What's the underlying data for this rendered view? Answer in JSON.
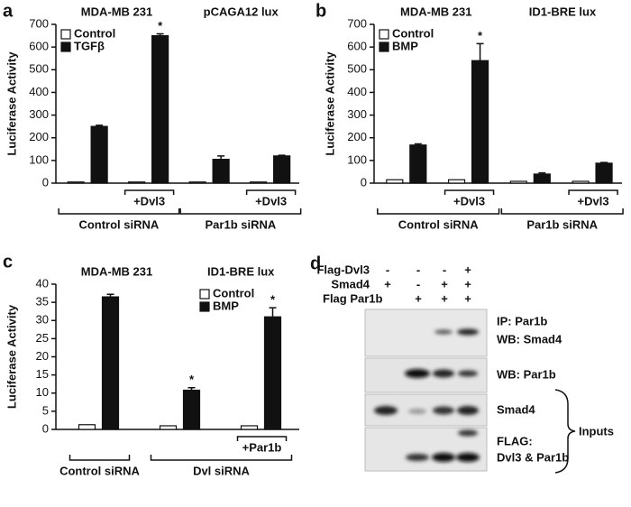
{
  "chart_data": [
    {
      "type": "bar",
      "panel": "a",
      "titles": [
        "MDA-MB 231",
        "pCAGA12 lux"
      ],
      "y_label": "Luciferase Activity",
      "categories": [
        null,
        null,
        null,
        null
      ],
      "series": [
        {
          "name": "Control",
          "color": "#ffffff",
          "values": [
            5,
            5,
            5,
            5
          ]
        },
        {
          "name": "TGFβ",
          "color": "#111111",
          "values": [
            250,
            650,
            105,
            120
          ],
          "errors": [
            5,
            8,
            15,
            3
          ]
        }
      ],
      "markers": [
        null,
        "*",
        null,
        null
      ],
      "sublabels": [
        "+Dvl3",
        "+Dvl3"
      ],
      "group_labels": [
        "Control siRNA",
        "Par1b siRNA"
      ],
      "ylim": [
        0,
        700
      ],
      "yticks": [
        0,
        100,
        200,
        300,
        400,
        500,
        600,
        700
      ],
      "legend": "upper left"
    },
    {
      "type": "bar",
      "panel": "b",
      "titles": [
        "MDA-MB 231",
        "ID1-BRE lux"
      ],
      "y_label": "Luciferase Activity",
      "categories": [
        null,
        null,
        null,
        null
      ],
      "series": [
        {
          "name": "Control",
          "color": "#ffffff",
          "values": [
            15,
            15,
            8,
            8
          ]
        },
        {
          "name": "BMP",
          "color": "#111111",
          "values": [
            168,
            540,
            40,
            88
          ],
          "errors": [
            5,
            75,
            5,
            3
          ]
        }
      ],
      "markers": [
        null,
        "*",
        null,
        null
      ],
      "sublabels": [
        "+Dvl3",
        "+Dvl3"
      ],
      "group_labels": [
        "Control siRNA",
        "Par1b siRNA"
      ],
      "ylim": [
        0,
        700
      ],
      "yticks": [
        0,
        100,
        200,
        300,
        400,
        500,
        600,
        700
      ],
      "legend": "upper left"
    },
    {
      "type": "bar",
      "panel": "c",
      "titles": [
        "MDA-MB 231",
        "ID1-BRE lux"
      ],
      "y_label": "Luciferase Activity",
      "categories": [
        null,
        null,
        null
      ],
      "series": [
        {
          "name": "Control",
          "color": "#ffffff",
          "values": [
            1.3,
            1.0,
            1.0
          ]
        },
        {
          "name": "BMP",
          "color": "#111111",
          "values": [
            36.5,
            10.8,
            31
          ],
          "errors": [
            0.7,
            0.7,
            2.5
          ]
        }
      ],
      "markers": [
        null,
        "*",
        "*"
      ],
      "sublabels": [
        "+Par1b"
      ],
      "group_labels": [
        "Control siRNA",
        "Dvl siRNA"
      ],
      "ylim": [
        0,
        40
      ],
      "yticks": [
        0,
        5,
        10,
        15,
        20,
        25,
        30,
        35,
        40
      ],
      "legend": "upper right"
    }
  ],
  "blot": {
    "panel": "d",
    "rows": [
      {
        "label": "Flag-Dvl3",
        "signs": [
          "-",
          "-",
          "-",
          "+"
        ]
      },
      {
        "label": "Smad4",
        "signs": [
          "+",
          "-",
          "+",
          "+"
        ]
      },
      {
        "label": "Flag Par1b",
        "signs": [
          "-",
          "+",
          "+",
          "+"
        ]
      }
    ],
    "band_labels": [
      "IP: Par1b",
      "WB: Smad4",
      "WB: Par1b",
      "Smad4",
      "FLAG:",
      "Dvl3 & Par1b"
    ],
    "group_label": "Inputs"
  }
}
